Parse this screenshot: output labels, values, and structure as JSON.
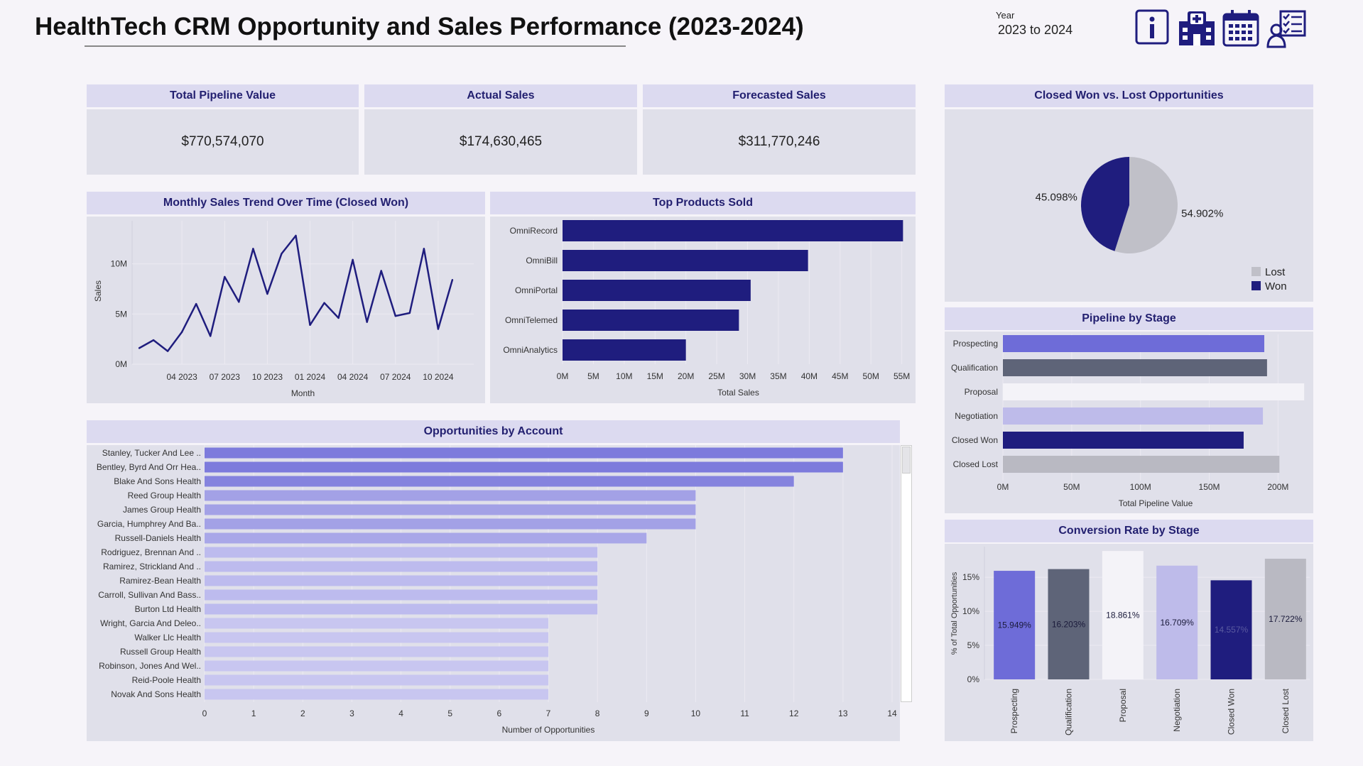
{
  "header": {
    "title": "HealthTech CRM Opportunity and Sales Performance (2023-2024)",
    "year_label": "Year",
    "year_value": "2023 to 2024",
    "icons": [
      "info-icon",
      "hospital-icon",
      "calendar-icon",
      "presenter-checklist-icon"
    ]
  },
  "kpis": [
    {
      "label": "Total Pipeline Value",
      "value": "$770,574,070"
    },
    {
      "label": "Actual Sales",
      "value": "$174,630,465"
    },
    {
      "label": "Forecasted Sales",
      "value": "$311,770,246"
    }
  ],
  "colors": {
    "navy": "#1f1d7e",
    "prospecting": "#6e6cd8",
    "qualification": "#5e6478",
    "proposal": "#f4f3f8",
    "negotiation": "#bebbea",
    "closed_won": "#1f1d7e",
    "closed_lost": "#b9b9c2",
    "lost": "#c0c0c8"
  },
  "chart_data": [
    {
      "id": "monthly",
      "type": "line",
      "title": "Monthly Sales Trend Over Time (Closed Won)",
      "xlabel": "Month",
      "ylabel": "Sales",
      "x_ticks": [
        "04 2023",
        "07 2023",
        "10 2023",
        "01 2024",
        "04 2024",
        "07 2024",
        "10 2024"
      ],
      "y_ticks": [
        "0M",
        "5M",
        "10M"
      ],
      "x": [
        "2023-01",
        "2023-02",
        "2023-03",
        "2023-04",
        "2023-05",
        "2023-06",
        "2023-07",
        "2023-08",
        "2023-09",
        "2023-10",
        "2023-11",
        "2023-12",
        "2024-01",
        "2024-02",
        "2024-03",
        "2024-04",
        "2024-05",
        "2024-06",
        "2024-07",
        "2024-08",
        "2024-09",
        "2024-10",
        "2024-11",
        "2024-12"
      ],
      "values": [
        1.6,
        2.4,
        1.3,
        3.2,
        6.0,
        2.8,
        8.7,
        6.2,
        11.5,
        7.0,
        11.0,
        12.8,
        3.9,
        6.1,
        4.6,
        10.4,
        4.2,
        9.3,
        4.8,
        5.1,
        11.5,
        3.5,
        8.4,
        null
      ],
      "ylim": [
        0,
        14
      ]
    },
    {
      "id": "products",
      "type": "bar",
      "orientation": "horizontal",
      "title": "Top Products Sold",
      "xlabel": "Total Sales",
      "categories": [
        "OmniRecord",
        "OmniBill",
        "OmniPortal",
        "OmniTelemed",
        "OmniAnalytics"
      ],
      "values": [
        55.2,
        39.8,
        30.5,
        28.6,
        20.0
      ],
      "x_ticks": [
        "0M",
        "5M",
        "10M",
        "15M",
        "20M",
        "25M",
        "30M",
        "35M",
        "40M",
        "45M",
        "50M",
        "55M"
      ],
      "xlim": [
        0,
        57
      ]
    },
    {
      "id": "won_lost",
      "type": "pie",
      "title": "Closed Won vs. Lost Opportunities",
      "categories": [
        "Lost",
        "Won"
      ],
      "labels": [
        "54.902%",
        "45.098%"
      ],
      "values": [
        54.902,
        45.098
      ]
    },
    {
      "id": "pipeline_stage",
      "type": "bar",
      "orientation": "horizontal",
      "title": "Pipeline by Stage",
      "xlabel": "Total Pipeline Value",
      "categories": [
        "Prospecting",
        "Qualification",
        "Proposal",
        "Negotiation",
        "Closed Won",
        "Closed Lost"
      ],
      "values": [
        190,
        192,
        219,
        189,
        175,
        201
      ],
      "x_ticks": [
        "0M",
        "50M",
        "100M",
        "150M",
        "200M"
      ],
      "xlim": [
        0,
        222
      ]
    },
    {
      "id": "conversion",
      "type": "bar",
      "title": "Conversion Rate by Stage",
      "ylabel": "% of Total Opportunities",
      "categories": [
        "Prospecting",
        "Qualification",
        "Proposal",
        "Negotiation",
        "Closed Won",
        "Closed Lost"
      ],
      "values": [
        15.949,
        16.203,
        18.861,
        16.709,
        14.557,
        17.722
      ],
      "labels": [
        "15.949%",
        "16.203%",
        "18.861%",
        "16.709%",
        "14.557%",
        "17.722%"
      ],
      "y_ticks": [
        "0%",
        "5%",
        "10%",
        "15%"
      ],
      "ylim": [
        0,
        19.5
      ]
    },
    {
      "id": "accounts",
      "type": "bar",
      "orientation": "horizontal",
      "title": "Opportunities by Account",
      "xlabel": "Number of Opportunities",
      "categories": [
        "Stanley, Tucker And Lee ..",
        "Bentley, Byrd And Orr Hea..",
        "Blake And Sons Health",
        "Reed Group Health",
        "James Group Health",
        "Garcia, Humphrey And Ba..",
        "Russell-Daniels Health",
        "Rodriguez, Brennan And ..",
        "Ramirez, Strickland And ..",
        "Ramirez-Bean Health",
        "Carroll, Sullivan And Bass..",
        "Burton Ltd Health",
        "Wright, Garcia And Deleo..",
        "Walker Llc Health",
        "Russell Group Health",
        "Robinson, Jones And Wel..",
        "Reid-Poole Health",
        "Novak And Sons Health"
      ],
      "values": [
        13,
        13,
        12,
        10,
        10,
        10,
        9,
        8,
        8,
        8,
        8,
        8,
        7,
        7,
        7,
        7,
        7,
        7
      ],
      "x_ticks": [
        "0",
        "1",
        "2",
        "3",
        "4",
        "5",
        "6",
        "7",
        "8",
        "9",
        "10",
        "11",
        "12",
        "13",
        "14"
      ],
      "xlim": [
        0,
        14
      ]
    }
  ]
}
